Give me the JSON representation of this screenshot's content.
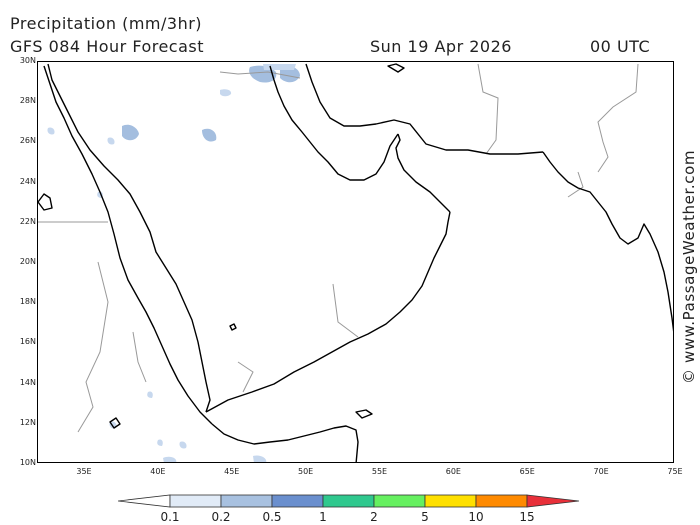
{
  "header": {
    "title": "Precipitation (mm/3hr)",
    "model": "GFS 084 Hour Forecast",
    "date": "Sun 19 Apr 2026",
    "time": "00 UTC"
  },
  "map": {
    "lat_labels": [
      "30N",
      "28N",
      "26N",
      "24N",
      "22N",
      "20N",
      "18N",
      "16N",
      "14N",
      "12N",
      "10N"
    ],
    "lon_labels": [
      "35E",
      "40E",
      "45E",
      "50E",
      "55E",
      "60E",
      "65E",
      "70E",
      "75E"
    ],
    "colors": {
      "land_outline": "#000000",
      "border": "#999999",
      "precip_light": "#c7d8ee",
      "precip_mid": "#a4bedf"
    }
  },
  "credit": "© www.PassageWeather.com",
  "legend": {
    "labels": [
      "0.1",
      "0.2",
      "0.5",
      "1",
      "2",
      "5",
      "10",
      "15"
    ],
    "colors": [
      "#ffffff",
      "#e1ebf7",
      "#a8c1e0",
      "#6a8fce",
      "#2fc88e",
      "#66f060",
      "#ffe000",
      "#ff8a00",
      "#e8303a"
    ]
  }
}
